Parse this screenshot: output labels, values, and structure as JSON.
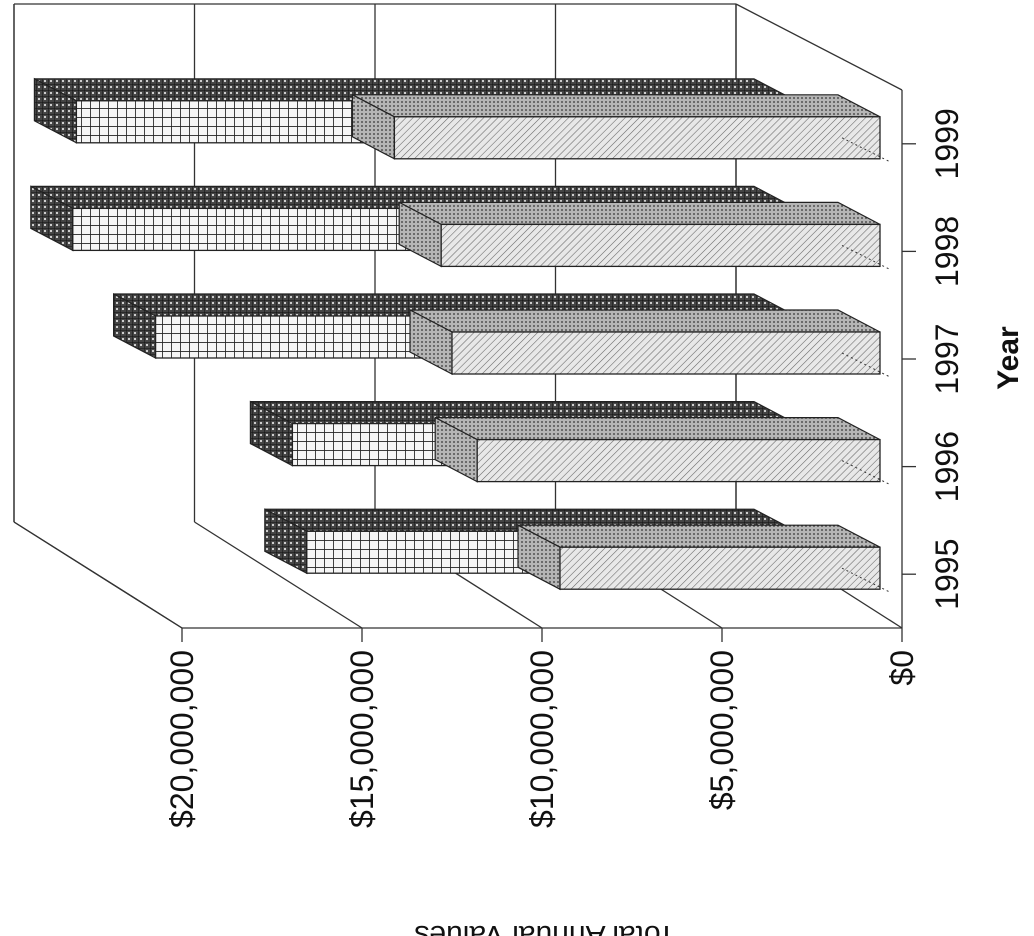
{
  "chart_data": {
    "type": "bar",
    "orientation": "rotated-90",
    "three_d": true,
    "ylabel": "Total Annual Values",
    "xlabel": "Year",
    "categories": [
      "1995",
      "1996",
      "1997",
      "1998",
      "1999"
    ],
    "ylim": [
      0,
      20000000
    ],
    "y_ticks": [
      0,
      5000000,
      10000000,
      15000000,
      20000000
    ],
    "y_tick_labels": [
      "$0",
      "$5,000,000",
      "$10,000,000",
      "$15,000,000",
      "$20,000,000"
    ],
    "grid": true,
    "legend": "none",
    "series": [
      {
        "pattern": "diagonal-hatch-light",
        "values": [
          9500000,
          11800000,
          12500000,
          12800000,
          14100000
        ]
      },
      {
        "pattern": "grid-mesh-dark",
        "values": [
          14200000,
          14600000,
          18400000,
          20700000,
          20600000
        ]
      }
    ]
  }
}
